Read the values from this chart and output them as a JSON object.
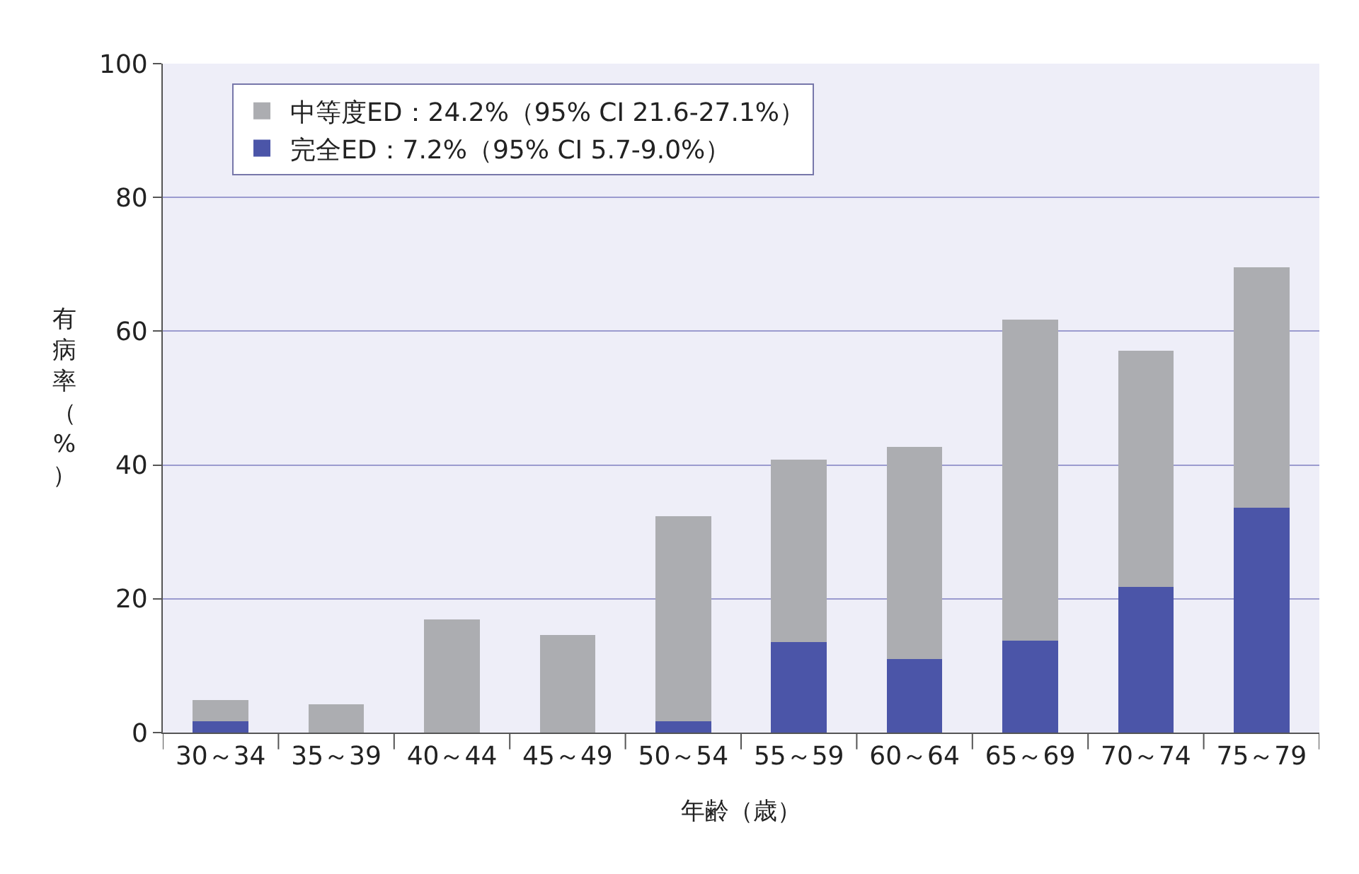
{
  "chart_data": {
    "type": "bar",
    "stacked": true,
    "xlabel": "年齢（歳）",
    "ylabel": "有病率（%）",
    "categories": [
      "30～34",
      "35～39",
      "40～44",
      "45～49",
      "50～54",
      "55～59",
      "60～64",
      "65～69",
      "70～74",
      "75～79"
    ],
    "series": [
      {
        "name": "完全ED：7.2%（95% CI 5.7-9.0%）",
        "color": "#4b55a8",
        "values": [
          1.7,
          0,
          0,
          0,
          1.7,
          13.5,
          11.0,
          13.7,
          21.8,
          33.6
        ]
      },
      {
        "name": "中等度ED：24.2%（95% CI 21.6-27.1%）",
        "color": "#acadb1",
        "values": [
          3.2,
          4.2,
          16.9,
          14.6,
          30.6,
          27.3,
          31.7,
          48.0,
          35.3,
          36.0
        ]
      }
    ],
    "ylim": [
      0,
      100
    ],
    "yticks": [
      0,
      20,
      40,
      60,
      80,
      100
    ],
    "grid": "y",
    "legend": "top left"
  }
}
